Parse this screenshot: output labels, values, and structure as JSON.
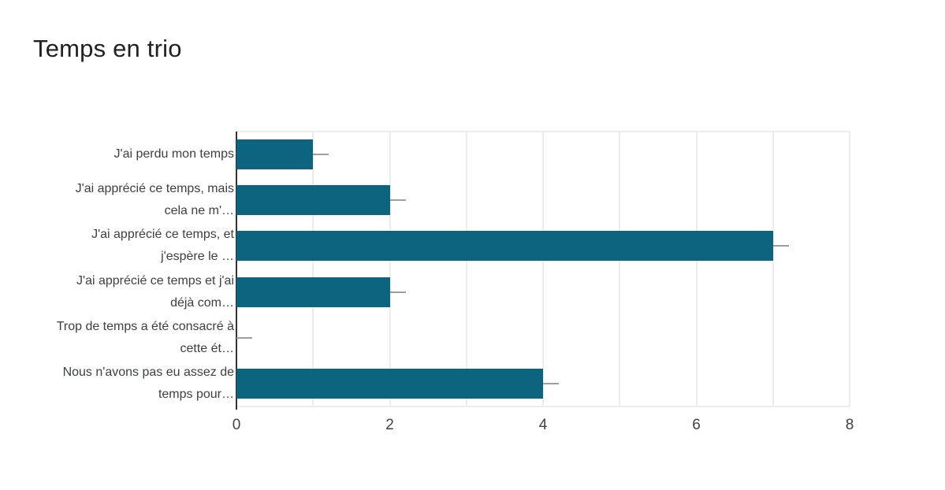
{
  "page": {
    "title": "Temps en trio"
  },
  "chart_data": {
    "type": "bar",
    "orientation": "horizontal",
    "title": "Temps en trio",
    "categories": [
      "J'ai perdu mon temps",
      "J'ai apprécié ce temps, mais cela ne m'…",
      "J'ai apprécié ce temps, et j'espère le …",
      "J'ai apprécié ce temps et j'ai déjà com…",
      "Trop de temps a été consacré à cette ét…",
      "Nous n'avons pas eu assez de temps pour…"
    ],
    "category_label_lines": [
      [
        "J'ai perdu mon temps"
      ],
      [
        "J'ai apprécié ce temps, mais",
        "cela ne m'…"
      ],
      [
        "J'ai apprécié ce temps, et",
        "j'espère le …"
      ],
      [
        "J'ai apprécié ce temps et j'ai",
        "déjà com…"
      ],
      [
        "Trop de temps a été consacré à",
        "cette ét…"
      ],
      [
        "Nous n'avons pas eu assez de",
        "temps pour…"
      ]
    ],
    "values": [
      1,
      2,
      7,
      2,
      0,
      4
    ],
    "xlim": [
      0,
      8
    ],
    "x_tick_values": [
      0,
      2,
      4,
      6,
      8
    ],
    "x_tick_labels": [
      "0",
      "2",
      "4",
      "6",
      "8"
    ],
    "gridline_step": 1,
    "grid": true,
    "legend": "none",
    "interval_whisker_units": 0.21,
    "colors": {
      "bar": "#0d647e",
      "gridline": "#ececec",
      "axis_line": "#333333",
      "whisker": "#9e9e9e",
      "tick_label": "#424242",
      "category_label": "#3c4043",
      "title": "#212121",
      "background": "#ffffff"
    }
  }
}
